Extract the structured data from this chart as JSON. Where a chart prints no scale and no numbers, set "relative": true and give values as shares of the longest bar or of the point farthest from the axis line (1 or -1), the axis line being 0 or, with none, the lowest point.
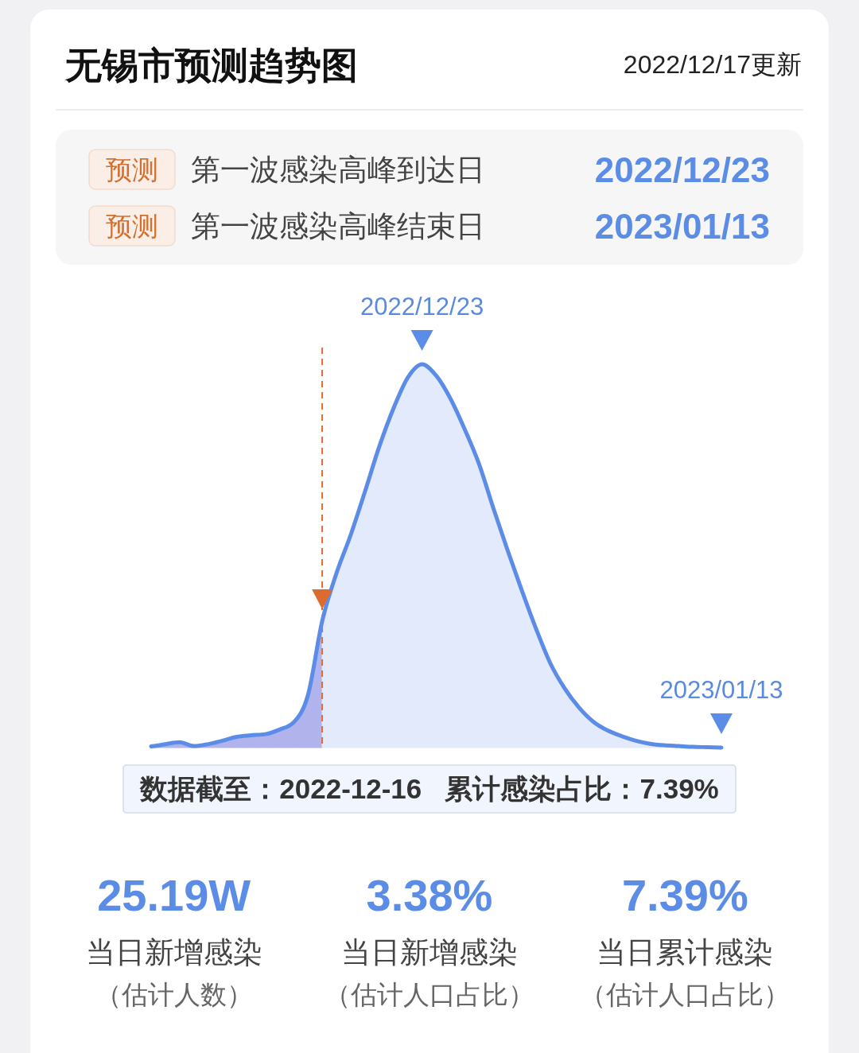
{
  "chart_data": [
    {
      "type": "other",
      "title": "无锡市预测趋势图",
      "subtitle": "2022/12/17更新",
      "annotations": [
        "预测",
        "第一波感染高峰到达日",
        "2022/12/23",
        "预测",
        "第一波感染高峰结束日",
        "2023/01/13"
      ]
    },
    {
      "type": "area",
      "relative": true,
      "categories": [
        null,
        null,
        null,
        null,
        null,
        null,
        null,
        null,
        null,
        null,
        null,
        null,
        null,
        null,
        null,
        null,
        null,
        null,
        null,
        "2022/12/23",
        null,
        null,
        null,
        null,
        null,
        null,
        null,
        null,
        null,
        null,
        null,
        null,
        null,
        null,
        null,
        null,
        null,
        null,
        null,
        null,
        "2023/01/13"
      ],
      "series": [
        {
          "type": "area",
          "color": "#b1b3ec",
          "values": [
            0.003,
            0.009,
            0.014,
            0.004,
            0.009,
            0.018,
            0.028,
            0.032,
            0.035,
            0.047,
            0.066,
            0.137,
            0.33,
            null,
            null,
            null,
            null,
            null,
            null,
            null,
            null,
            null,
            null,
            null,
            null,
            null,
            null,
            null,
            null,
            null,
            null,
            null,
            null,
            null,
            null,
            null,
            null,
            null,
            null,
            null,
            null
          ]
        },
        {
          "type": "area",
          "color": "#e3eafb",
          "values": [
            null,
            null,
            null,
            null,
            null,
            null,
            null,
            null,
            null,
            null,
            null,
            null,
            0.33,
            0.455,
            0.555,
            0.668,
            0.785,
            0.885,
            0.965,
            1,
            0.97,
            0.91,
            0.83,
            0.74,
            0.625,
            0.515,
            0.41,
            0.31,
            0.22,
            0.155,
            0.105,
            0.068,
            0.045,
            0.03,
            0.018,
            0.01,
            0.006,
            0.004,
            0.002,
            0.001,
            0
          ]
        },
        {
          "type": "line",
          "color": "#5b8ce8",
          "values": [
            0.003,
            0.009,
            0.014,
            0.004,
            0.009,
            0.018,
            0.028,
            0.032,
            0.035,
            0.047,
            0.066,
            0.137,
            0.33,
            0.455,
            0.555,
            0.668,
            0.785,
            0.885,
            0.965,
            1,
            0.97,
            0.91,
            0.83,
            0.74,
            0.625,
            0.515,
            0.41,
            0.31,
            0.22,
            0.155,
            0.105,
            0.068,
            0.045,
            0.03,
            0.018,
            0.01,
            0.006,
            0.004,
            0.002,
            0.001,
            0
          ]
        }
      ],
      "line_style": "solid",
      "annotations": [
        "数据截至：2022-12-16   累计感染占比：7.39%"
      ]
    },
    {
      "type": "other",
      "annotations": [
        "25.19W",
        "当日新增感染",
        "（估计人数）",
        "3.38%",
        "当日新增感染",
        "（估计人口占比）",
        "7.39%",
        "当日累计感染",
        "（估计人口占比）"
      ]
    }
  ]
}
